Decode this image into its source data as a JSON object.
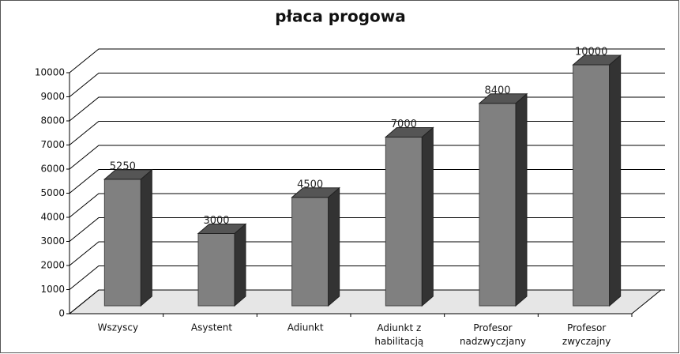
{
  "chart_data": {
    "type": "bar3d",
    "title": "płaca progowa",
    "categories": [
      "Wszyscy",
      "Asystent",
      "Adiunkt",
      "Adiunkt z habilitacją",
      "Profesor nadzwyczjany",
      "Profesor zwyczajny"
    ],
    "values": [
      5250,
      3000,
      4500,
      7000,
      8400,
      10000
    ],
    "color": "#808080",
    "ylim": [
      0,
      10000
    ],
    "yticks": [
      0,
      1000,
      2000,
      3000,
      4000,
      5000,
      6000,
      7000,
      8000,
      9000,
      10000
    ],
    "grid": true
  }
}
